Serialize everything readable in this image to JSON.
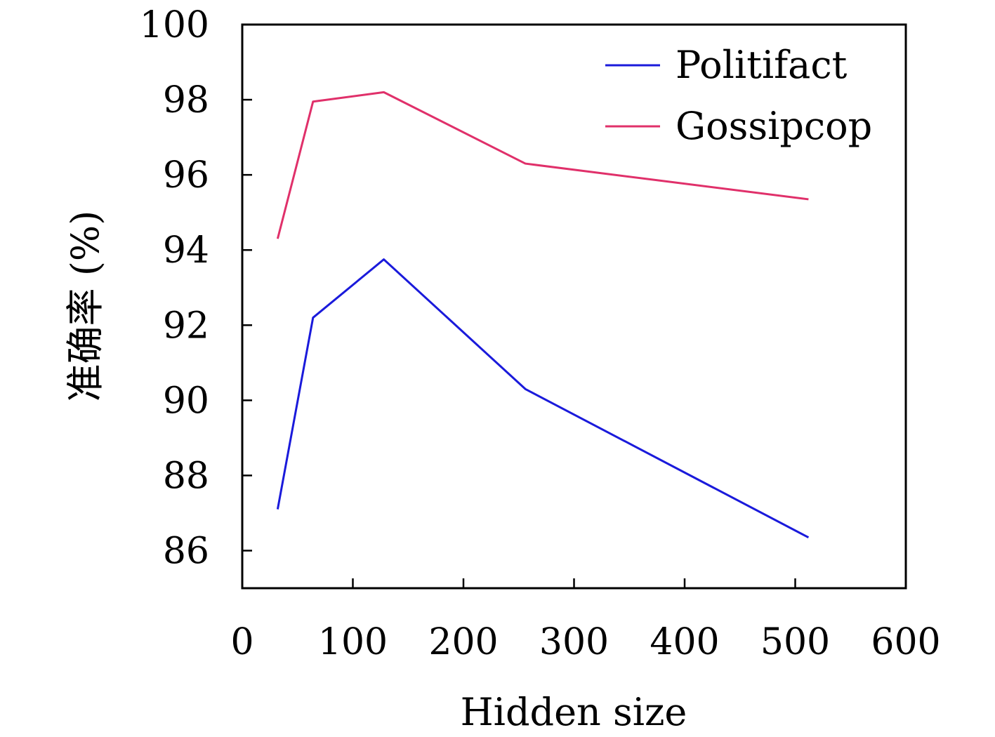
{
  "chart_data": {
    "type": "line",
    "title": "",
    "xlabel": "Hidden size",
    "ylabel": "准确率 (%)",
    "xlim": [
      0,
      600
    ],
    "ylim": [
      85,
      100
    ],
    "xticks": [
      0,
      100,
      200,
      300,
      400,
      500,
      600
    ],
    "yticks": [
      86,
      88,
      90,
      92,
      94,
      96,
      98,
      100
    ],
    "grid": false,
    "legend_position": "top-right",
    "x": [
      32,
      64,
      128,
      256,
      512
    ],
    "series": [
      {
        "name": "Politifact",
        "color": "#1a1adb",
        "values": [
          87.1,
          92.2,
          93.75,
          90.3,
          86.35
        ]
      },
      {
        "name": "Gossipcop",
        "color": "#e0306a",
        "values": [
          94.3,
          97.95,
          98.2,
          96.3,
          95.35
        ]
      }
    ]
  }
}
